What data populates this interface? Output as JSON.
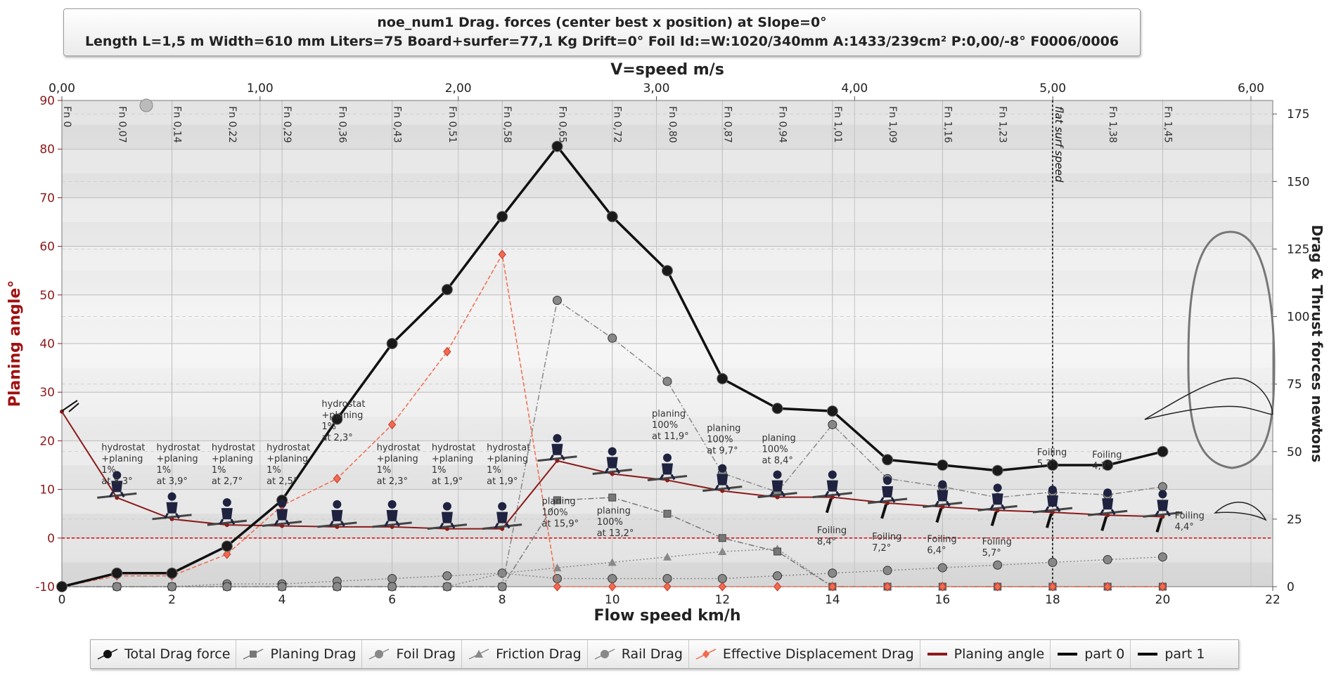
{
  "title": {
    "line1": "noe_num1 Drag. forces (center best x position) at  Slope=0°",
    "line2": "Length L=1,5 m Width=610 mm Liters=75 Board+surfer=77,1 Kg Drift=0° Foil Id:=W:1020/340mm A:1433/239cm² P:0,00/-8° F0006/0006"
  },
  "chart_data": {
    "type": "line",
    "x_bottom": {
      "label": "Flow speed km/h",
      "range": [
        0,
        22
      ],
      "ticks": [
        "0",
        "2",
        "4",
        "6",
        "8",
        "10",
        "12",
        "14",
        "16",
        "18",
        "20",
        "22"
      ]
    },
    "x_top": {
      "label": "V=speed m/s",
      "range": [
        0,
        6.11
      ],
      "ticks": [
        "0,00",
        "1,00",
        "2,00",
        "3,00",
        "4,00",
        "5,00",
        "6,00"
      ]
    },
    "y_left": {
      "label": "Planing angle°",
      "range": [
        -10,
        90
      ],
      "ticks": [
        "-10",
        "0",
        "10",
        "20",
        "30",
        "40",
        "50",
        "60",
        "70",
        "80",
        "90"
      ]
    },
    "y_right": {
      "label": "Drag & Thrust forces newtons",
      "range": [
        0,
        180
      ],
      "ticks": [
        "0",
        "25",
        "50",
        "75",
        "100",
        "125",
        "150",
        "175"
      ]
    },
    "froude": {
      "x": [
        0,
        1,
        2,
        3,
        4,
        5,
        6,
        7,
        8,
        9,
        10,
        11,
        12,
        13,
        14,
        15,
        16,
        17,
        18,
        19,
        20
      ],
      "labels": [
        "Fn 0",
        "Fn 0,07",
        "Fn 0,14",
        "Fn 0,22",
        "Fn 0,29",
        "Fn 0,36",
        "Fn 0,43",
        "Fn 0,51",
        "Fn 0,58",
        "Fn 0,65",
        "Fn 0,72",
        "Fn 0,80",
        "Fn 0,87",
        "Fn 0,94",
        "Fn 1,01",
        "Fn 1,09",
        "Fn 1,16",
        "Fn 1,23",
        "",
        "Fn 1,38",
        "Fn 1,45"
      ]
    },
    "takeoff": {
      "x": 18,
      "label": "flat surf speed"
    },
    "series": [
      {
        "name": "Total Drag force",
        "axis": "right",
        "color": "#111111",
        "style": "solid-thick",
        "marker": "circle",
        "x": [
          0,
          1,
          2,
          3,
          4,
          5,
          6,
          7,
          8,
          9,
          10,
          11,
          12,
          13,
          14,
          15,
          16,
          17,
          18,
          19,
          20
        ],
        "values": [
          0,
          5,
          5,
          15,
          32,
          62,
          90,
          110,
          137,
          163,
          137,
          117,
          77,
          66,
          65,
          47,
          45,
          43,
          45,
          45,
          50
        ]
      },
      {
        "name": "Planing Drag",
        "axis": "right",
        "color": "#777777",
        "style": "dashdot",
        "marker": "square",
        "x": [
          0,
          1,
          2,
          3,
          4,
          5,
          6,
          7,
          8,
          9,
          10,
          11,
          12,
          13,
          14,
          15,
          16,
          17,
          18,
          19,
          20
        ],
        "values": [
          0,
          0,
          0,
          0,
          0,
          0,
          0,
          0,
          0,
          32,
          33,
          27,
          18,
          13,
          0,
          0,
          0,
          0,
          0,
          0,
          0
        ]
      },
      {
        "name": "Foil Drag",
        "axis": "right",
        "color": "#888888",
        "style": "dashdot",
        "marker": "circle",
        "x": [
          0,
          1,
          2,
          3,
          4,
          5,
          6,
          7,
          8,
          9,
          10,
          11,
          12,
          13,
          14,
          15,
          16,
          17,
          18,
          19,
          20
        ],
        "values": [
          0,
          0,
          0,
          0,
          0,
          0,
          0,
          0,
          0,
          106,
          92,
          76,
          42,
          35,
          60,
          40,
          37,
          33,
          35,
          34,
          37
        ]
      },
      {
        "name": "Friction Drag",
        "axis": "right",
        "color": "#888888",
        "style": "dotted",
        "marker": "triangle",
        "x": [
          0,
          1,
          2,
          3,
          4,
          5,
          6,
          7,
          8,
          9,
          10,
          11,
          12,
          13,
          14,
          15,
          16,
          17,
          18,
          19,
          20
        ],
        "values": [
          0,
          0,
          0,
          0,
          0,
          0,
          0,
          0,
          5,
          7,
          9,
          11,
          13,
          14,
          0,
          0,
          0,
          0,
          0,
          0,
          0
        ]
      },
      {
        "name": "Rail Drag",
        "axis": "right",
        "color": "#888888",
        "style": "dotted",
        "marker": "circle",
        "x": [
          0,
          1,
          2,
          3,
          4,
          5,
          6,
          7,
          8,
          9,
          10,
          11,
          12,
          13,
          14,
          15,
          16,
          17,
          18,
          19,
          20
        ],
        "values": [
          0,
          0,
          0,
          1,
          1,
          2,
          3,
          4,
          5,
          3,
          3,
          3,
          3,
          4,
          5,
          6,
          7,
          8,
          9,
          10,
          11
        ]
      },
      {
        "name": "Effective Displacement Drag",
        "axis": "right",
        "color": "#f26a4f",
        "style": "dashed",
        "marker": "diamond",
        "x": [
          0,
          1,
          2,
          3,
          4,
          5,
          6,
          7,
          8,
          9,
          10,
          11,
          12,
          13,
          14,
          15,
          16,
          17,
          18,
          19,
          20
        ],
        "values": [
          0,
          4,
          4,
          12,
          30,
          40,
          60,
          87,
          123,
          0,
          0,
          0,
          0,
          0,
          0,
          0,
          0,
          0,
          0,
          0,
          0
        ]
      },
      {
        "name": "Planing angle",
        "axis": "left",
        "color": "#8b1a1a",
        "style": "solid",
        "marker": "dot",
        "x": [
          0,
          1,
          2,
          3,
          4,
          5,
          6,
          7,
          8,
          9,
          10,
          11,
          12,
          13,
          14,
          15,
          16,
          17,
          18,
          19,
          20
        ],
        "values": [
          26,
          8.3,
          3.9,
          2.7,
          2.5,
          2.3,
          2.3,
          1.9,
          1.9,
          15.9,
          13.2,
          11.9,
          9.7,
          8.4,
          8.4,
          7.2,
          6.4,
          5.7,
          5.3,
          4.7,
          4.4
        ]
      },
      {
        "name": "part 0",
        "color": "#000000",
        "style": "solid"
      },
      {
        "name": "part 1",
        "color": "#000000",
        "style": "solid"
      }
    ],
    "annotations": [
      {
        "x": 1,
        "y": 18,
        "lines": [
          "hydrostat",
          "+planing",
          "1%",
          "at 8,3°"
        ]
      },
      {
        "x": 2,
        "y": 18,
        "lines": [
          "hydrostat",
          "+planing",
          "1%",
          "at 3,9°"
        ]
      },
      {
        "x": 3,
        "y": 18,
        "lines": [
          "hydrostat",
          "+planing",
          "1%",
          "at 2,7°"
        ]
      },
      {
        "x": 4,
        "y": 18,
        "lines": [
          "hydrostat",
          "+planing",
          "1%",
          "at 2,5°"
        ]
      },
      {
        "x": 5,
        "y": 27,
        "lines": [
          "hydrostat",
          "+planing",
          "1%",
          "at 2,3°"
        ]
      },
      {
        "x": 6,
        "y": 18,
        "lines": [
          "hydrostat",
          "+planing",
          "1%",
          "at 2,3°"
        ]
      },
      {
        "x": 7,
        "y": 18,
        "lines": [
          "hydrostat",
          "+planing",
          "1%",
          "at 1,9°"
        ]
      },
      {
        "x": 8,
        "y": 18,
        "lines": [
          "hydrostat",
          "+planing",
          "1%",
          "at 1,9°"
        ]
      },
      {
        "x": 9,
        "y": 7,
        "lines": [
          "planing",
          "100%",
          "at 15,9°"
        ]
      },
      {
        "x": 10,
        "y": 5,
        "lines": [
          "planing",
          "100%",
          "at 13,2°"
        ]
      },
      {
        "x": 11,
        "y": 25,
        "lines": [
          "planing",
          "100%",
          "at 11,9°"
        ]
      },
      {
        "x": 12,
        "y": 22,
        "lines": [
          "planing",
          "100%",
          "at 9,7°"
        ]
      },
      {
        "x": 13,
        "y": 20,
        "lines": [
          "planing",
          "100%",
          "at 8,4°"
        ]
      },
      {
        "x": 14,
        "y": 1,
        "lines": [
          "Foiling",
          "8,4°"
        ]
      },
      {
        "x": 15,
        "y": -0.3,
        "lines": [
          "Foiling",
          "7,2°"
        ]
      },
      {
        "x": 16,
        "y": -0.8,
        "lines": [
          "Foiling",
          "6,4°"
        ]
      },
      {
        "x": 17,
        "y": -1.3,
        "lines": [
          "Foiling",
          "5,7°"
        ]
      },
      {
        "x": 18,
        "y": 17,
        "lines": [
          "Foiling",
          "5,3°"
        ]
      },
      {
        "x": 19,
        "y": 16.5,
        "lines": [
          "Foiling",
          "4,7°"
        ]
      },
      {
        "x": 20.5,
        "y": 4,
        "lines": [
          "Foiling",
          "4,4°"
        ]
      }
    ]
  },
  "legend": [
    {
      "label": "Total Drag force",
      "icon": "circle-line",
      "color": "#111111"
    },
    {
      "label": "Planing Drag",
      "icon": "square-line",
      "color": "#777777"
    },
    {
      "label": "Foil Drag",
      "icon": "circle-line",
      "color": "#888888"
    },
    {
      "label": "Friction Drag",
      "icon": "triangle-line",
      "color": "#888888"
    },
    {
      "label": "Rail Drag",
      "icon": "circle-line",
      "color": "#888888"
    },
    {
      "label": "Effective Displacement Drag",
      "icon": "diamond-line",
      "color": "#f26a4f"
    },
    {
      "label": "Planing angle",
      "icon": "thick-line",
      "color": "#8b1a1a"
    },
    {
      "label": "part 0",
      "icon": "thick-line",
      "color": "#000000"
    },
    {
      "label": "part 1",
      "icon": "thick-line",
      "color": "#000000"
    }
  ]
}
